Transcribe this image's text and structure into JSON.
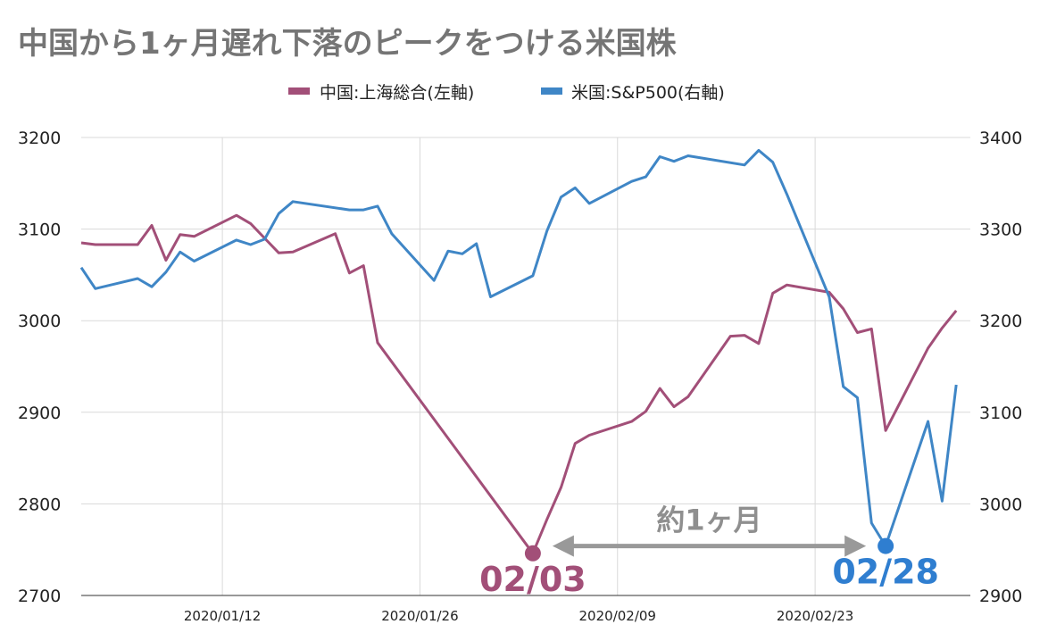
{
  "chart_data": {
    "type": "line",
    "title": "中国から1ヶ月遅れ下落のピークをつける米国株",
    "legend": {
      "placement": "top-center",
      "items": [
        {
          "label": "中国:上海総合(左軸)",
          "color": "#a24f78"
        },
        {
          "label": "米国:S&P500(右軸)",
          "color": "#3f86c6"
        }
      ]
    },
    "grid": true,
    "x_axis": {
      "type": "date",
      "range": [
        "2020-01-02",
        "2020-03-05"
      ],
      "ticks": [
        {
          "date": "2020-01-12",
          "label": "2020/01/12"
        },
        {
          "date": "2020-01-26",
          "label": "2020/01/26"
        },
        {
          "date": "2020-02-09",
          "label": "2020/02/09"
        },
        {
          "date": "2020-02-23",
          "label": "2020/02/23"
        }
      ]
    },
    "y_left": {
      "min": 2700,
      "max": 3200,
      "ticks": [
        2700,
        2800,
        2900,
        3000,
        3100,
        3200
      ]
    },
    "y_right": {
      "min": 2900,
      "max": 3400,
      "ticks": [
        2900,
        3000,
        3100,
        3200,
        3300,
        3400
      ]
    },
    "series": [
      {
        "name": "中国:上海総合(左軸)",
        "axis": "left",
        "color": "#a24f78",
        "points": [
          [
            "2020-01-02",
            3085
          ],
          [
            "2020-01-03",
            3083
          ],
          [
            "2020-01-06",
            3083
          ],
          [
            "2020-01-07",
            3104
          ],
          [
            "2020-01-08",
            3066
          ],
          [
            "2020-01-09",
            3094
          ],
          [
            "2020-01-10",
            3092
          ],
          [
            "2020-01-13",
            3115
          ],
          [
            "2020-01-14",
            3106
          ],
          [
            "2020-01-15",
            3090
          ],
          [
            "2020-01-16",
            3074
          ],
          [
            "2020-01-17",
            3075
          ],
          [
            "2020-01-20",
            3095
          ],
          [
            "2020-01-21",
            3052
          ],
          [
            "2020-01-22",
            3060
          ],
          [
            "2020-01-23",
            2976
          ],
          [
            "2020-02-03",
            2746
          ],
          [
            "2020-02-04",
            2783
          ],
          [
            "2020-02-05",
            2818
          ],
          [
            "2020-02-06",
            2866
          ],
          [
            "2020-02-07",
            2875
          ],
          [
            "2020-02-10",
            2890
          ],
          [
            "2020-02-11",
            2901
          ],
          [
            "2020-02-12",
            2926
          ],
          [
            "2020-02-13",
            2906
          ],
          [
            "2020-02-14",
            2917
          ],
          [
            "2020-02-17",
            2983
          ],
          [
            "2020-02-18",
            2984
          ],
          [
            "2020-02-19",
            2975
          ],
          [
            "2020-02-20",
            3030
          ],
          [
            "2020-02-21",
            3039
          ],
          [
            "2020-02-24",
            3031
          ],
          [
            "2020-02-25",
            3013
          ],
          [
            "2020-02-26",
            2987
          ],
          [
            "2020-02-27",
            2991
          ],
          [
            "2020-02-28",
            2880
          ],
          [
            "2020-03-02",
            2970
          ],
          [
            "2020-03-03",
            2992
          ],
          [
            "2020-03-04",
            3011
          ]
        ]
      },
      {
        "name": "米国:S&P500(右軸)",
        "axis": "right",
        "color": "#3f86c6",
        "points": [
          [
            "2020-01-02",
            3258
          ],
          [
            "2020-01-03",
            3235
          ],
          [
            "2020-01-06",
            3246
          ],
          [
            "2020-01-07",
            3237
          ],
          [
            "2020-01-08",
            3253
          ],
          [
            "2020-01-09",
            3275
          ],
          [
            "2020-01-10",
            3265
          ],
          [
            "2020-01-13",
            3288
          ],
          [
            "2020-01-14",
            3283
          ],
          [
            "2020-01-15",
            3289
          ],
          [
            "2020-01-16",
            3317
          ],
          [
            "2020-01-17",
            3330
          ],
          [
            "2020-01-21",
            3321
          ],
          [
            "2020-01-22",
            3321
          ],
          [
            "2020-01-23",
            3325
          ],
          [
            "2020-01-24",
            3295
          ],
          [
            "2020-01-27",
            3244
          ],
          [
            "2020-01-28",
            3276
          ],
          [
            "2020-01-29",
            3273
          ],
          [
            "2020-01-30",
            3284
          ],
          [
            "2020-01-31",
            3226
          ],
          [
            "2020-02-03",
            3249
          ],
          [
            "2020-02-04",
            3298
          ],
          [
            "2020-02-05",
            3335
          ],
          [
            "2020-02-06",
            3345
          ],
          [
            "2020-02-07",
            3328
          ],
          [
            "2020-02-10",
            3352
          ],
          [
            "2020-02-11",
            3357
          ],
          [
            "2020-02-12",
            3379
          ],
          [
            "2020-02-13",
            3374
          ],
          [
            "2020-02-14",
            3380
          ],
          [
            "2020-02-18",
            3370
          ],
          [
            "2020-02-19",
            3386
          ],
          [
            "2020-02-20",
            3373
          ],
          [
            "2020-02-21",
            3338
          ],
          [
            "2020-02-24",
            3226
          ],
          [
            "2020-02-25",
            3128
          ],
          [
            "2020-02-26",
            3116
          ],
          [
            "2020-02-27",
            2979
          ],
          [
            "2020-02-28",
            2954
          ],
          [
            "2020-03-02",
            3090
          ],
          [
            "2020-03-03",
            3003
          ],
          [
            "2020-03-04",
            3130
          ]
        ]
      }
    ],
    "annotations": {
      "peak_china": {
        "date": "2020-02-03",
        "value": 2746,
        "label": "02/03"
      },
      "peak_us": {
        "date": "2020-02-28",
        "value": 2954,
        "label": "02/28"
      },
      "arrow_label": "約1ヶ月"
    }
  }
}
